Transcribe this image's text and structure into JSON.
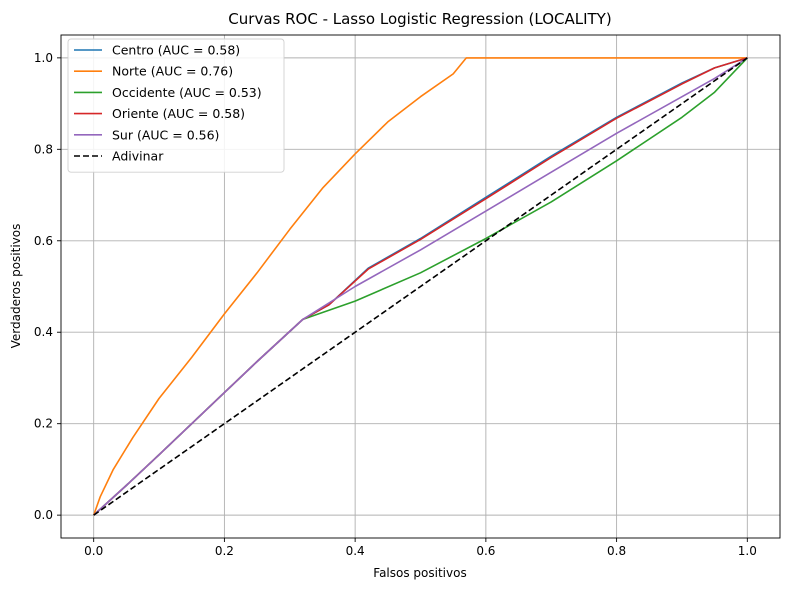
{
  "chart_data": {
    "type": "line",
    "title": "Curvas ROC - Lasso Logistic Regression (LOCALITY)",
    "xlabel": "Falsos positivos",
    "ylabel": "Verdaderos positivos",
    "xlim": [
      -0.05,
      1.05
    ],
    "ylim": [
      -0.05,
      1.05
    ],
    "grid": true,
    "legend_position": "top-left",
    "x_ticks": [
      "0.0",
      "0.2",
      "0.4",
      "0.6",
      "0.8",
      "1.0"
    ],
    "y_ticks": [
      "0.0",
      "0.2",
      "0.4",
      "0.6",
      "0.8",
      "1.0"
    ],
    "series": [
      {
        "name": "Centro (AUC = 0.58)",
        "color": "#1f77b4",
        "dash": "solid",
        "points": [
          [
            0,
            0
          ],
          [
            0.05,
            0.065
          ],
          [
            0.1,
            0.132
          ],
          [
            0.15,
            0.2
          ],
          [
            0.2,
            0.268
          ],
          [
            0.25,
            0.336
          ],
          [
            0.32,
            0.428
          ],
          [
            0.36,
            0.46
          ],
          [
            0.42,
            0.54
          ],
          [
            0.5,
            0.605
          ],
          [
            0.6,
            0.695
          ],
          [
            0.7,
            0.785
          ],
          [
            0.8,
            0.87
          ],
          [
            0.9,
            0.945
          ],
          [
            0.95,
            0.978
          ],
          [
            1,
            1
          ]
        ]
      },
      {
        "name": "Norte (AUC = 0.76)",
        "color": "#ff7f0e",
        "dash": "solid",
        "points": [
          [
            0,
            0
          ],
          [
            0.01,
            0.04
          ],
          [
            0.03,
            0.1
          ],
          [
            0.06,
            0.17
          ],
          [
            0.1,
            0.255
          ],
          [
            0.15,
            0.345
          ],
          [
            0.2,
            0.44
          ],
          [
            0.25,
            0.53
          ],
          [
            0.3,
            0.625
          ],
          [
            0.35,
            0.715
          ],
          [
            0.4,
            0.79
          ],
          [
            0.45,
            0.86
          ],
          [
            0.5,
            0.915
          ],
          [
            0.55,
            0.965
          ],
          [
            0.57,
            1
          ],
          [
            0.8,
            1
          ],
          [
            1,
            1
          ]
        ]
      },
      {
        "name": "Occidente (AUC = 0.53)",
        "color": "#2ca02c",
        "dash": "solid",
        "points": [
          [
            0,
            0
          ],
          [
            0.05,
            0.065
          ],
          [
            0.1,
            0.132
          ],
          [
            0.15,
            0.2
          ],
          [
            0.2,
            0.268
          ],
          [
            0.25,
            0.336
          ],
          [
            0.32,
            0.428
          ],
          [
            0.4,
            0.468
          ],
          [
            0.5,
            0.53
          ],
          [
            0.6,
            0.605
          ],
          [
            0.7,
            0.685
          ],
          [
            0.8,
            0.775
          ],
          [
            0.9,
            0.87
          ],
          [
            0.95,
            0.925
          ],
          [
            1,
            1
          ]
        ]
      },
      {
        "name": "Oriente (AUC = 0.58)",
        "color": "#d62728",
        "dash": "solid",
        "points": [
          [
            0,
            0
          ],
          [
            0.05,
            0.065
          ],
          [
            0.1,
            0.132
          ],
          [
            0.15,
            0.2
          ],
          [
            0.2,
            0.268
          ],
          [
            0.25,
            0.336
          ],
          [
            0.32,
            0.428
          ],
          [
            0.36,
            0.46
          ],
          [
            0.42,
            0.538
          ],
          [
            0.5,
            0.603
          ],
          [
            0.6,
            0.692
          ],
          [
            0.7,
            0.782
          ],
          [
            0.8,
            0.868
          ],
          [
            0.9,
            0.943
          ],
          [
            0.95,
            0.978
          ],
          [
            1,
            1
          ]
        ]
      },
      {
        "name": "Sur (AUC = 0.56)",
        "color": "#9467bd",
        "dash": "solid",
        "points": [
          [
            0,
            0
          ],
          [
            0.05,
            0.065
          ],
          [
            0.1,
            0.132
          ],
          [
            0.15,
            0.2
          ],
          [
            0.2,
            0.268
          ],
          [
            0.25,
            0.336
          ],
          [
            0.32,
            0.428
          ],
          [
            0.4,
            0.5
          ],
          [
            0.5,
            0.58
          ],
          [
            0.6,
            0.665
          ],
          [
            0.7,
            0.75
          ],
          [
            0.8,
            0.835
          ],
          [
            0.9,
            0.915
          ],
          [
            0.95,
            0.955
          ],
          [
            1,
            1
          ]
        ]
      },
      {
        "name": "Adivinar",
        "color": "#000000",
        "dash": "dashed",
        "points": [
          [
            0,
            0
          ],
          [
            1,
            1
          ]
        ]
      }
    ]
  }
}
